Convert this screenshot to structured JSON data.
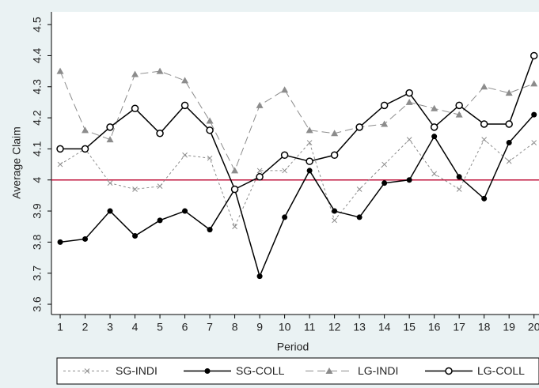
{
  "chart_data": {
    "type": "line",
    "x_label": "Period",
    "y_label": "Average Claim",
    "x": [
      1,
      2,
      3,
      4,
      5,
      6,
      7,
      8,
      9,
      10,
      11,
      12,
      13,
      14,
      15,
      16,
      17,
      18,
      19,
      20
    ],
    "xlim": [
      0.65,
      20.2
    ],
    "xticks": [
      1,
      2,
      3,
      4,
      5,
      6,
      7,
      8,
      9,
      10,
      11,
      12,
      13,
      14,
      15,
      16,
      17,
      18,
      19,
      20
    ],
    "ylim": [
      3.567,
      4.541
    ],
    "yticks": [
      3.6,
      3.7,
      3.8,
      3.9,
      4,
      4.1,
      4.2,
      4.3,
      4.4,
      4.5
    ],
    "reference_line": 4,
    "reference_color": "#c0143c",
    "legend": "bottom",
    "series": [
      {
        "name": "SG-INDI",
        "color": "#8c8c8c",
        "marker": "x",
        "dash": "dotted",
        "values": [
          4.05,
          4.1,
          3.99,
          3.97,
          3.98,
          4.08,
          4.07,
          3.85,
          4.03,
          4.03,
          4.12,
          3.87,
          3.97,
          4.05,
          4.13,
          4.02,
          3.97,
          4.13,
          4.06,
          4.12
        ]
      },
      {
        "name": "SG-COLL",
        "color": "#000000",
        "marker": "circle",
        "dash": "solid",
        "values": [
          3.8,
          3.81,
          3.9,
          3.82,
          3.87,
          3.9,
          3.84,
          3.97,
          3.69,
          3.88,
          4.03,
          3.9,
          3.88,
          3.99,
          4.0,
          4.14,
          4.01,
          3.94,
          4.12,
          4.21
        ]
      },
      {
        "name": "LG-INDI",
        "color": "#8c8c8c",
        "marker": "triangle",
        "dash": "dashed",
        "values": [
          4.35,
          4.16,
          4.13,
          4.34,
          4.35,
          4.32,
          4.19,
          4.03,
          4.24,
          4.29,
          4.16,
          4.15,
          4.17,
          4.18,
          4.25,
          4.23,
          4.21,
          4.3,
          4.28,
          4.31
        ]
      },
      {
        "name": "LG-COLL",
        "color": "#000000",
        "marker": "hollow-circle",
        "dash": "solid",
        "values": [
          4.1,
          4.1,
          4.17,
          4.23,
          4.15,
          4.24,
          4.16,
          3.97,
          4.01,
          4.08,
          4.06,
          4.08,
          4.17,
          4.24,
          4.28,
          4.17,
          4.24,
          4.18,
          4.18,
          4.4
        ]
      }
    ]
  }
}
